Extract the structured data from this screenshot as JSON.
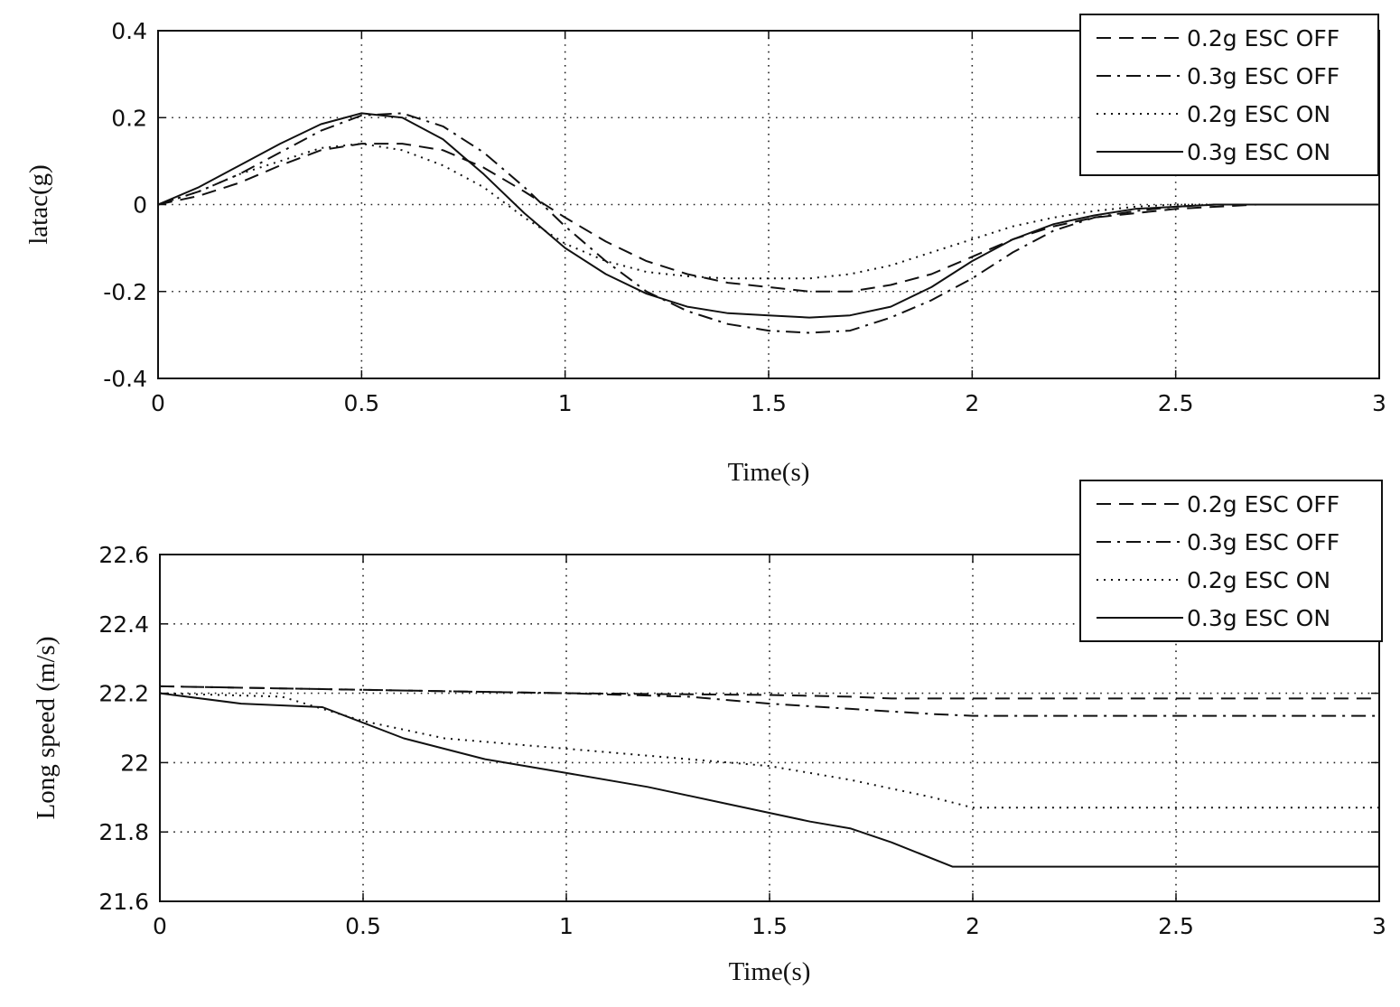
{
  "chart_data": [
    {
      "type": "line",
      "title": "",
      "xlabel": "Time(s)",
      "ylabel": "latac(g)",
      "xlim": [
        0,
        3
      ],
      "ylim": [
        -0.4,
        0.4
      ],
      "xticks": [
        0,
        0.5,
        1,
        1.5,
        2,
        2.5,
        3
      ],
      "xtick_labels": [
        "0",
        "0.5",
        "1",
        "1.5",
        "2",
        "2.5",
        "3"
      ],
      "yticks": [
        0.4,
        0.2,
        0,
        -0.2,
        -0.4
      ],
      "ytick_labels": [
        "0.4",
        "0.2",
        "0",
        "-0.2",
        "-0.4"
      ],
      "grid": true,
      "legend_position": "top-right",
      "series": [
        {
          "name": "0.2g ESC OFF",
          "style": "dashed",
          "x": [
            0,
            0.1,
            0.2,
            0.3,
            0.4,
            0.5,
            0.6,
            0.7,
            0.8,
            0.9,
            1.0,
            1.1,
            1.2,
            1.3,
            1.4,
            1.5,
            1.6,
            1.7,
            1.8,
            1.9,
            2.0,
            2.1,
            2.2,
            2.3,
            2.4,
            2.5,
            2.6,
            2.7,
            2.8,
            3.0
          ],
          "y": [
            0,
            0.02,
            0.05,
            0.09,
            0.125,
            0.14,
            0.14,
            0.125,
            0.085,
            0.03,
            -0.03,
            -0.085,
            -0.13,
            -0.16,
            -0.18,
            -0.19,
            -0.2,
            -0.2,
            -0.185,
            -0.16,
            -0.12,
            -0.08,
            -0.05,
            -0.03,
            -0.02,
            -0.01,
            -0.005,
            0,
            0,
            0
          ]
        },
        {
          "name": "0.3g ESC OFF",
          "style": "dashdot",
          "x": [
            0,
            0.1,
            0.2,
            0.3,
            0.4,
            0.5,
            0.6,
            0.7,
            0.8,
            0.9,
            1.0,
            1.1,
            1.2,
            1.3,
            1.4,
            1.5,
            1.6,
            1.7,
            1.8,
            1.9,
            2.0,
            2.1,
            2.2,
            2.3,
            2.4,
            2.5,
            2.6,
            2.7,
            2.8,
            3.0
          ],
          "y": [
            0,
            0.03,
            0.07,
            0.12,
            0.17,
            0.205,
            0.21,
            0.18,
            0.12,
            0.04,
            -0.05,
            -0.13,
            -0.2,
            -0.245,
            -0.275,
            -0.29,
            -0.295,
            -0.29,
            -0.26,
            -0.22,
            -0.17,
            -0.11,
            -0.06,
            -0.03,
            -0.015,
            -0.005,
            0,
            0,
            0,
            0
          ]
        },
        {
          "name": "0.2g ESC ON",
          "style": "dotted",
          "x": [
            0,
            0.1,
            0.2,
            0.3,
            0.4,
            0.5,
            0.6,
            0.7,
            0.8,
            0.9,
            1.0,
            1.1,
            1.2,
            1.3,
            1.4,
            1.5,
            1.6,
            1.7,
            1.8,
            1.9,
            2.0,
            2.1,
            2.2,
            2.3,
            2.4,
            2.5,
            2.6,
            2.7,
            2.8,
            3.0
          ],
          "y": [
            0,
            0.03,
            0.07,
            0.1,
            0.13,
            0.14,
            0.125,
            0.09,
            0.04,
            -0.03,
            -0.09,
            -0.13,
            -0.155,
            -0.165,
            -0.17,
            -0.17,
            -0.17,
            -0.16,
            -0.14,
            -0.11,
            -0.08,
            -0.05,
            -0.03,
            -0.015,
            -0.005,
            0,
            0,
            0,
            0,
            0
          ]
        },
        {
          "name": "0.3g ESC ON",
          "style": "solid",
          "x": [
            0,
            0.1,
            0.2,
            0.3,
            0.4,
            0.5,
            0.6,
            0.7,
            0.8,
            0.9,
            1.0,
            1.1,
            1.2,
            1.3,
            1.4,
            1.5,
            1.6,
            1.7,
            1.8,
            1.9,
            2.0,
            2.1,
            2.2,
            2.3,
            2.4,
            2.5,
            2.6,
            2.7,
            2.8,
            3.0
          ],
          "y": [
            0,
            0.04,
            0.09,
            0.14,
            0.185,
            0.21,
            0.2,
            0.15,
            0.07,
            -0.02,
            -0.1,
            -0.16,
            -0.205,
            -0.235,
            -0.25,
            -0.255,
            -0.26,
            -0.255,
            -0.235,
            -0.19,
            -0.13,
            -0.08,
            -0.045,
            -0.025,
            -0.01,
            -0.005,
            0,
            0,
            0,
            0
          ]
        }
      ]
    },
    {
      "type": "line",
      "title": "",
      "xlabel": "Time(s)",
      "ylabel": "Long speed (m/s)",
      "xlim": [
        0,
        3
      ],
      "ylim": [
        21.6,
        22.6
      ],
      "xticks": [
        0,
        0.5,
        1,
        1.5,
        2,
        2.5,
        3
      ],
      "xtick_labels": [
        "0",
        "0.5",
        "1",
        "1.5",
        "2",
        "2.5",
        "3"
      ],
      "yticks": [
        22.6,
        22.4,
        22.2,
        22,
        21.8,
        21.6
      ],
      "ytick_labels": [
        "22.6",
        "22.4",
        "22.2",
        "22",
        "21.8",
        "21.6"
      ],
      "grid": true,
      "legend_position": "top-right",
      "series": [
        {
          "name": "0.2g ESC OFF",
          "style": "dashed",
          "x": [
            0,
            0.5,
            1.0,
            1.5,
            1.7,
            1.8,
            3.0
          ],
          "y": [
            22.22,
            22.21,
            22.2,
            22.195,
            22.19,
            22.185,
            22.185
          ]
        },
        {
          "name": "0.3g ESC OFF",
          "style": "dashdot",
          "x": [
            0,
            0.5,
            1.0,
            1.3,
            1.5,
            1.7,
            1.9,
            2.0,
            3.0
          ],
          "y": [
            22.22,
            22.21,
            22.2,
            22.19,
            22.17,
            22.155,
            22.14,
            22.135,
            22.135
          ]
        },
        {
          "name": "0.2g ESC ON",
          "style": "dotted",
          "x": [
            0,
            0.3,
            0.5,
            0.7,
            0.9,
            1.0,
            1.2,
            1.5,
            1.7,
            1.9,
            2.0,
            3.0
          ],
          "y": [
            22.2,
            22.19,
            22.12,
            22.07,
            22.05,
            22.04,
            22.02,
            21.99,
            21.95,
            21.9,
            21.87,
            21.87
          ]
        },
        {
          "name": "0.3g ESC ON",
          "style": "solid",
          "x": [
            0,
            0.2,
            0.4,
            0.6,
            0.8,
            1.0,
            1.2,
            1.4,
            1.6,
            1.7,
            1.8,
            1.95,
            2.0,
            3.0
          ],
          "y": [
            22.2,
            22.17,
            22.16,
            22.07,
            22.01,
            21.97,
            21.93,
            21.88,
            21.83,
            21.81,
            21.77,
            21.7,
            21.7,
            21.7
          ]
        }
      ]
    }
  ]
}
